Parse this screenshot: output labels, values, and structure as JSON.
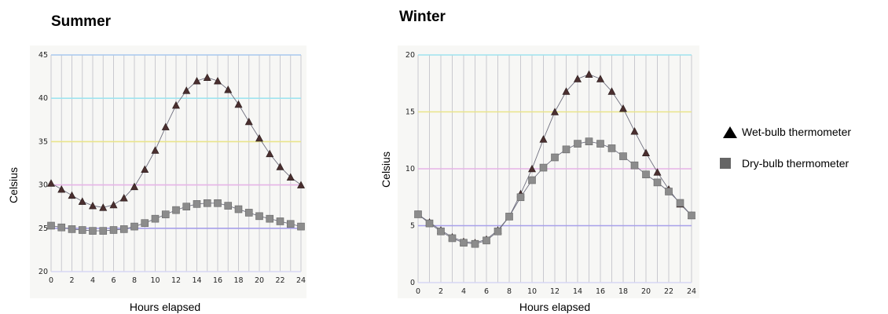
{
  "legend": {
    "wet_label": "Wet-bulb thermometer",
    "dry_label": "Dry-bulb thermometer"
  },
  "chart_data": [
    {
      "type": "scatter",
      "title": "Summer",
      "xlabel": "Hours elapsed",
      "ylabel": "Celsius",
      "xlim": [
        0,
        24
      ],
      "ylim": [
        20,
        45
      ],
      "xticks": [
        0,
        2,
        4,
        6,
        8,
        10,
        12,
        14,
        16,
        18,
        20,
        22,
        24
      ],
      "yticks": [
        20,
        25,
        30,
        35,
        40,
        45
      ],
      "grid": true,
      "legend": "right",
      "series": [
        {
          "name": "Wet-bulb thermometer",
          "marker": "triangle",
          "color": "#4a2f2f",
          "x": [
            0,
            1,
            2,
            3,
            4,
            5,
            6,
            7,
            8,
            9,
            10,
            11,
            12,
            13,
            14,
            15,
            16,
            17,
            18,
            19,
            20,
            21,
            22,
            23,
            24
          ],
          "y": [
            30.2,
            29.5,
            28.8,
            28.1,
            27.6,
            27.4,
            27.7,
            28.5,
            29.8,
            31.8,
            34.0,
            36.7,
            39.2,
            40.9,
            42.0,
            42.4,
            42.0,
            41.0,
            39.3,
            37.3,
            35.4,
            33.6,
            32.1,
            30.9,
            30.0
          ]
        },
        {
          "name": "Dry-bulb thermometer",
          "marker": "square",
          "color": "#8c8c8c",
          "x": [
            0,
            1,
            2,
            3,
            4,
            5,
            6,
            7,
            8,
            9,
            10,
            11,
            12,
            13,
            14,
            15,
            16,
            17,
            18,
            19,
            20,
            21,
            22,
            23,
            24
          ],
          "y": [
            25.3,
            25.1,
            24.9,
            24.8,
            24.7,
            24.7,
            24.8,
            24.9,
            25.2,
            25.6,
            26.1,
            26.6,
            27.1,
            27.5,
            27.8,
            27.9,
            27.9,
            27.6,
            27.2,
            26.8,
            26.4,
            26.1,
            25.8,
            25.5,
            25.2
          ]
        }
      ]
    },
    {
      "type": "scatter",
      "title": "Winter",
      "xlabel": "Hours elapsed",
      "ylabel": "Celsius",
      "xlim": [
        0,
        24
      ],
      "ylim": [
        0,
        20
      ],
      "xticks": [
        0,
        2,
        4,
        6,
        8,
        10,
        12,
        14,
        16,
        18,
        20,
        22,
        24
      ],
      "yticks": [
        0,
        5,
        10,
        15,
        20
      ],
      "grid": true,
      "legend": "right",
      "series": [
        {
          "name": "Wet-bulb thermometer",
          "marker": "triangle",
          "color": "#4a2f2f",
          "x": [
            0,
            1,
            2,
            3,
            4,
            5,
            6,
            7,
            8,
            9,
            10,
            11,
            12,
            13,
            14,
            15,
            16,
            17,
            18,
            19,
            20,
            21,
            22,
            23,
            24
          ],
          "y": [
            6.0,
            5.3,
            4.6,
            4.0,
            3.6,
            3.5,
            3.8,
            4.6,
            5.8,
            7.8,
            10.0,
            12.6,
            15.0,
            16.8,
            17.9,
            18.3,
            17.9,
            16.8,
            15.3,
            13.3,
            11.4,
            9.7,
            8.2,
            6.9,
            5.9
          ]
        },
        {
          "name": "Dry-bulb thermometer",
          "marker": "square",
          "color": "#8c8c8c",
          "x": [
            0,
            1,
            2,
            3,
            4,
            5,
            6,
            7,
            8,
            9,
            10,
            11,
            12,
            13,
            14,
            15,
            16,
            17,
            18,
            19,
            20,
            21,
            22,
            23,
            24
          ],
          "y": [
            6.0,
            5.2,
            4.5,
            3.9,
            3.5,
            3.4,
            3.7,
            4.5,
            5.8,
            7.5,
            9.0,
            10.1,
            11.0,
            11.7,
            12.2,
            12.4,
            12.2,
            11.8,
            11.1,
            10.3,
            9.5,
            8.8,
            8.0,
            7.0,
            5.9
          ]
        }
      ]
    }
  ]
}
